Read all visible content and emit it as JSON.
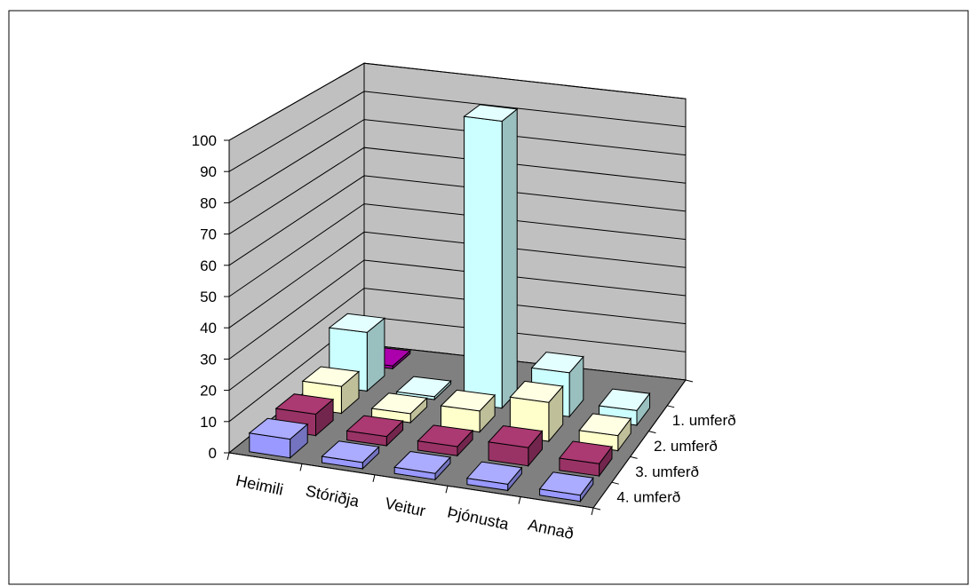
{
  "chart_data": {
    "type": "bar",
    "title": "",
    "xlabel": "",
    "ylabel": "",
    "ylim": [
      0,
      100
    ],
    "yticks": [
      0,
      10,
      20,
      30,
      40,
      50,
      60,
      70,
      80,
      90,
      100
    ],
    "categories": [
      "Heimili",
      "Stóriðja",
      "Veitur",
      "Þjónusta",
      "Annað"
    ],
    "series": [
      {
        "name": "1. umferð",
        "color": "#CCFFFF",
        "values": [
          20,
          1,
          98,
          15,
          5
        ]
      },
      {
        "name": "2. umferð",
        "color": "#FFFFCC",
        "values": [
          9,
          3,
          7,
          13,
          5
        ]
      },
      {
        "name": "3. umferð",
        "color": "#993366",
        "values": [
          7,
          3,
          3,
          6,
          4
        ]
      },
      {
        "name": "4. umferð",
        "color": "#9999FF",
        "values": [
          6,
          2,
          2,
          2,
          2
        ]
      }
    ],
    "extra_points": [
      {
        "category": "Heimili",
        "values": [
          1,
          0,
          0,
          0
        ],
        "color": "#990099",
        "note": ""
      }
    ],
    "grid": true,
    "legend": "none"
  }
}
